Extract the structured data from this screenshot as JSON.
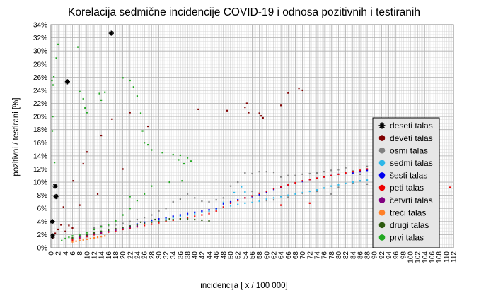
{
  "chart_data": {
    "type": "scatter",
    "title": "Korelacija sedmične incidencije COVID-19 i odnosa pozitivnih i testiranih",
    "xlabel": "incidencija [ x / 100 000]",
    "ylabel": "pozitivni / testirani [%]",
    "xlim": [
      0,
      112
    ],
    "ylim": [
      0,
      34
    ],
    "x_ticks": [
      "0",
      "2",
      "4",
      "6",
      "8",
      "10",
      "12",
      "14",
      "16",
      "18",
      "20",
      "22",
      "24",
      "26",
      "28",
      "30",
      "32",
      "34",
      "36",
      "38",
      "40",
      "42",
      "44",
      "46",
      "48",
      "50",
      "52",
      "54",
      "56",
      "58",
      "60",
      "62",
      "64",
      "66",
      "68",
      "70",
      "72",
      "74",
      "76",
      "78",
      "80",
      "82",
      "84",
      "86",
      "88",
      "90",
      "92",
      "94",
      "96",
      "98",
      "100",
      "102",
      "104",
      "106",
      "108",
      "110",
      "112"
    ],
    "y_ticks": [
      "0%",
      "2%",
      "4%",
      "6%",
      "8%",
      "10%",
      "12%",
      "14%",
      "16%",
      "18%",
      "20%",
      "22%",
      "24%",
      "26%",
      "28%",
      "30%",
      "32%",
      "34%"
    ],
    "grid": true,
    "legend_position": "right",
    "series": [
      {
        "name": "deseti talas",
        "color": "#000000",
        "marker": "star",
        "points": [
          [
            16.8,
            32.7
          ],
          [
            4.6,
            25.3
          ],
          [
            1.2,
            9.4
          ],
          [
            1.4,
            7.8
          ],
          [
            0.4,
            4.0
          ],
          [
            0.5,
            1.8
          ]
        ]
      },
      {
        "name": "deveti talas",
        "color": "#7f0000",
        "marker": "dot",
        "points": [
          [
            0.5,
            1.5
          ],
          [
            1.2,
            2.2
          ],
          [
            2,
            2.8
          ],
          [
            2.8,
            3.5
          ],
          [
            3.5,
            6.2
          ],
          [
            5,
            3.4
          ],
          [
            6.2,
            10.2
          ],
          [
            8,
            6.5
          ],
          [
            9,
            12.8
          ],
          [
            10,
            14.6
          ],
          [
            13,
            8.2
          ],
          [
            14,
            17.1
          ],
          [
            17,
            19.6
          ],
          [
            20,
            12
          ],
          [
            22,
            20.6
          ],
          [
            27,
            18.5
          ],
          [
            41,
            21.1
          ],
          [
            49,
            20.9
          ],
          [
            54,
            21.4
          ],
          [
            54.5,
            22
          ],
          [
            55,
            20.6
          ],
          [
            58,
            20.5
          ],
          [
            58.5,
            20.1
          ],
          [
            59,
            19.8
          ],
          [
            64,
            21.7
          ],
          [
            66,
            23.6
          ],
          [
            69,
            24.3
          ],
          [
            70,
            24
          ],
          [
            4,
            2.5
          ],
          [
            6,
            3
          ]
        ]
      },
      {
        "name": "osmi talas",
        "color": "#808080",
        "marker": "dot",
        "points": [
          [
            12,
            3
          ],
          [
            14,
            3.3
          ],
          [
            16,
            3.4
          ],
          [
            18,
            3.5
          ],
          [
            20,
            3.7
          ],
          [
            22,
            4
          ],
          [
            24,
            4.3
          ],
          [
            26,
            4.6
          ],
          [
            28,
            5
          ],
          [
            30,
            5.6
          ],
          [
            32,
            6
          ],
          [
            34,
            7
          ],
          [
            36,
            7.4
          ],
          [
            38,
            8.2
          ],
          [
            40,
            7.6
          ],
          [
            42,
            7.1
          ],
          [
            44,
            7
          ],
          [
            46,
            7.3
          ],
          [
            48,
            7.6
          ],
          [
            50,
            9.4
          ],
          [
            52,
            10
          ],
          [
            54,
            11.4
          ],
          [
            56,
            11.3
          ],
          [
            58,
            11.6
          ],
          [
            60,
            11.6
          ],
          [
            62,
            11.5
          ],
          [
            64,
            10.8
          ],
          [
            66,
            11
          ],
          [
            68,
            11
          ],
          [
            70,
            11.2
          ],
          [
            72,
            11.3
          ],
          [
            74,
            11.4
          ],
          [
            76,
            11.6
          ],
          [
            78,
            11.8
          ],
          [
            80,
            11.9
          ],
          [
            82,
            12.2
          ],
          [
            84,
            11.7
          ],
          [
            86,
            11.2
          ],
          [
            88,
            12.4
          ],
          [
            58,
            8.1
          ],
          [
            62,
            7.3
          ],
          [
            66,
            7.7
          ],
          [
            70,
            8.3
          ],
          [
            74,
            8.6
          ],
          [
            78,
            8.2
          ],
          [
            80,
            9.2
          ],
          [
            84,
            9.8
          ],
          [
            86,
            10.2
          ],
          [
            88,
            9.7
          ],
          [
            90,
            9.4
          ],
          [
            56,
            8.6
          ],
          [
            60,
            7.2
          ]
        ]
      },
      {
        "name": "sedmi talas",
        "color": "#2db7e8",
        "marker": "dot",
        "points": [
          [
            24,
            3.6
          ],
          [
            26,
            3.8
          ],
          [
            28,
            4.1
          ],
          [
            30,
            4.2
          ],
          [
            32,
            4.4
          ],
          [
            34,
            4.6
          ],
          [
            36,
            4.8
          ],
          [
            38,
            5
          ],
          [
            40,
            5.2
          ],
          [
            42,
            5.4
          ],
          [
            44,
            5.6
          ],
          [
            46,
            5.9
          ],
          [
            48,
            6.2
          ],
          [
            50,
            6.4
          ],
          [
            52,
            6.6
          ],
          [
            54,
            6.8
          ],
          [
            56,
            6.9
          ],
          [
            58,
            7.1
          ],
          [
            60,
            7.4
          ],
          [
            62,
            7.6
          ],
          [
            64,
            7.8
          ],
          [
            66,
            8
          ],
          [
            68,
            8.2
          ],
          [
            70,
            8.4
          ],
          [
            72,
            8.6
          ],
          [
            74,
            8.8
          ],
          [
            76,
            9.1
          ],
          [
            78,
            9.4
          ],
          [
            80,
            9.6
          ],
          [
            82,
            9.8
          ],
          [
            84,
            10
          ],
          [
            86,
            10.2
          ],
          [
            88,
            10.3
          ],
          [
            53,
            9.3
          ],
          [
            51,
            8.4
          ],
          [
            48,
            6.9
          ],
          [
            54,
            8.5
          ]
        ]
      },
      {
        "name": "šesti talas",
        "color": "#0000ee",
        "marker": "dot",
        "points": [
          [
            22,
            3.3
          ],
          [
            24,
            3.6
          ],
          [
            26,
            3.9
          ],
          [
            28,
            4.2
          ],
          [
            30,
            4.4
          ],
          [
            32,
            4.6
          ],
          [
            34,
            4.8
          ],
          [
            36,
            5
          ],
          [
            38,
            5.2
          ],
          [
            40,
            5.4
          ],
          [
            42,
            5.6
          ],
          [
            44,
            5.8
          ],
          [
            46,
            6
          ],
          [
            48,
            6.7
          ],
          [
            50,
            7
          ],
          [
            52,
            7.3
          ],
          [
            54,
            7.6
          ],
          [
            56,
            7.8
          ],
          [
            58,
            8.1
          ],
          [
            60,
            8.5
          ],
          [
            62,
            8.9
          ],
          [
            64,
            9.2
          ],
          [
            66,
            9.5
          ],
          [
            68,
            9.8
          ],
          [
            70,
            10.1
          ],
          [
            72,
            10.4
          ],
          [
            74,
            10.6
          ],
          [
            76,
            10.8
          ],
          [
            78,
            11
          ],
          [
            80,
            11.2
          ],
          [
            82,
            11.3
          ],
          [
            84,
            11.4
          ],
          [
            86,
            11.6
          ],
          [
            88,
            11.8
          ],
          [
            90,
            12
          ]
        ]
      },
      {
        "name": "peti talas",
        "color": "#ee0000",
        "marker": "dot",
        "points": [
          [
            6,
            1.2
          ],
          [
            8,
            1.4
          ],
          [
            10,
            1.7
          ],
          [
            12,
            2
          ],
          [
            14,
            2.2
          ],
          [
            16,
            2.4
          ],
          [
            18,
            2.6
          ],
          [
            20,
            2.8
          ],
          [
            22,
            3
          ],
          [
            24,
            3.2
          ],
          [
            26,
            3.4
          ],
          [
            28,
            3.6
          ],
          [
            30,
            3.8
          ],
          [
            32,
            4
          ],
          [
            34,
            4.2
          ],
          [
            36,
            4.4
          ],
          [
            38,
            4.6
          ],
          [
            40,
            4.8
          ],
          [
            42,
            5
          ],
          [
            44,
            5.2
          ],
          [
            46,
            5.6
          ],
          [
            48,
            6.2
          ],
          [
            50,
            6.8
          ],
          [
            52,
            7.2
          ],
          [
            54,
            7.6
          ],
          [
            56,
            7.9
          ],
          [
            58,
            8.3
          ],
          [
            60,
            8.6
          ],
          [
            62,
            9
          ],
          [
            64,
            9.3
          ],
          [
            66,
            9.6
          ],
          [
            68,
            9.9
          ],
          [
            70,
            10.2
          ],
          [
            72,
            10.4
          ],
          [
            74,
            10.6
          ],
          [
            76,
            10.8
          ],
          [
            78,
            11
          ],
          [
            80,
            11.2
          ],
          [
            82,
            11.4
          ],
          [
            84,
            11.6
          ],
          [
            86,
            11.8
          ],
          [
            88,
            12
          ],
          [
            90,
            12.1
          ],
          [
            96,
            9.8
          ],
          [
            100,
            9.4
          ],
          [
            111,
            9.2
          ],
          [
            64,
            6.5
          ],
          [
            72,
            6.8
          ]
        ]
      },
      {
        "name": "četvrti talas",
        "color": "#800080",
        "marker": "dot",
        "points": [
          [
            6,
            1.4
          ],
          [
            8,
            1.6
          ],
          [
            10,
            1.8
          ],
          [
            12,
            2.1
          ],
          [
            14,
            2.3
          ],
          [
            16,
            2.5
          ],
          [
            18,
            2.7
          ],
          [
            20,
            2.9
          ],
          [
            22,
            3.1
          ],
          [
            24,
            3.3
          ]
        ]
      },
      {
        "name": "treći talas",
        "color": "#ff7f27",
        "marker": "dot",
        "points": [
          [
            6,
            0.9
          ],
          [
            7,
            1
          ],
          [
            8,
            1.1
          ],
          [
            9,
            1.2
          ],
          [
            10,
            1.3
          ],
          [
            11,
            1.4
          ],
          [
            12,
            1.5
          ],
          [
            13,
            1.6
          ],
          [
            14,
            1.7
          ],
          [
            15,
            1.8
          ]
        ]
      },
      {
        "name": "drugi talas",
        "color": "#2d5a0f",
        "marker": "dot",
        "points": [
          [
            6,
            1.5
          ],
          [
            8,
            1.8
          ],
          [
            10,
            2
          ],
          [
            12,
            2.3
          ],
          [
            14,
            2.5
          ],
          [
            16,
            2.7
          ],
          [
            18,
            2.9
          ],
          [
            20,
            3.1
          ],
          [
            22,
            3.3
          ],
          [
            24,
            3.5
          ],
          [
            26,
            3.7
          ],
          [
            28,
            3.9
          ],
          [
            30,
            4
          ],
          [
            32,
            4.2
          ],
          [
            34,
            4.3
          ],
          [
            36,
            4.4
          ],
          [
            38,
            4.4
          ],
          [
            40,
            4.3
          ],
          [
            42,
            4.2
          ],
          [
            44,
            4.1
          ],
          [
            25,
            3.9
          ],
          [
            29,
            4.3
          ],
          [
            33,
            4.4
          ]
        ]
      },
      {
        "name": "prvi talas",
        "color": "#22a822",
        "marker": "dot",
        "points": [
          [
            0.3,
            25.5
          ],
          [
            0.8,
            26.1
          ],
          [
            1.5,
            28.9
          ],
          [
            2,
            31
          ],
          [
            0.6,
            24.8
          ],
          [
            0.5,
            20
          ],
          [
            0.4,
            17.8
          ],
          [
            1,
            13
          ],
          [
            7.5,
            30.6
          ],
          [
            8,
            23.8
          ],
          [
            9,
            22.7
          ],
          [
            9.5,
            21.3
          ],
          [
            10,
            20.6
          ],
          [
            13.5,
            23.5
          ],
          [
            14,
            22.5
          ],
          [
            15,
            23.7
          ],
          [
            20,
            25.9
          ],
          [
            22,
            25.5
          ],
          [
            23,
            24.5
          ],
          [
            24,
            23.1
          ],
          [
            25,
            20.5
          ],
          [
            25.5,
            17.8
          ],
          [
            26,
            16
          ],
          [
            27,
            15.7
          ],
          [
            28,
            14.9
          ],
          [
            31,
            14.5
          ],
          [
            34,
            14.2
          ],
          [
            35.5,
            13.4
          ],
          [
            36,
            14.1
          ],
          [
            37,
            12.8
          ],
          [
            38,
            13.7
          ],
          [
            39,
            13.2
          ],
          [
            36.5,
            10.2
          ],
          [
            33,
            10
          ],
          [
            26,
            8.2
          ],
          [
            24,
            7.2
          ],
          [
            22,
            6
          ],
          [
            20,
            5
          ],
          [
            18,
            4.1
          ],
          [
            16,
            3.5
          ],
          [
            14,
            3.2
          ],
          [
            12,
            2.8
          ],
          [
            10,
            2.3
          ],
          [
            8,
            2
          ],
          [
            6,
            1.8
          ],
          [
            5,
            1.6
          ],
          [
            4,
            1.4
          ],
          [
            3,
            1.1
          ],
          [
            28,
            9.4
          ],
          [
            22,
            7.8
          ]
        ]
      }
    ]
  }
}
